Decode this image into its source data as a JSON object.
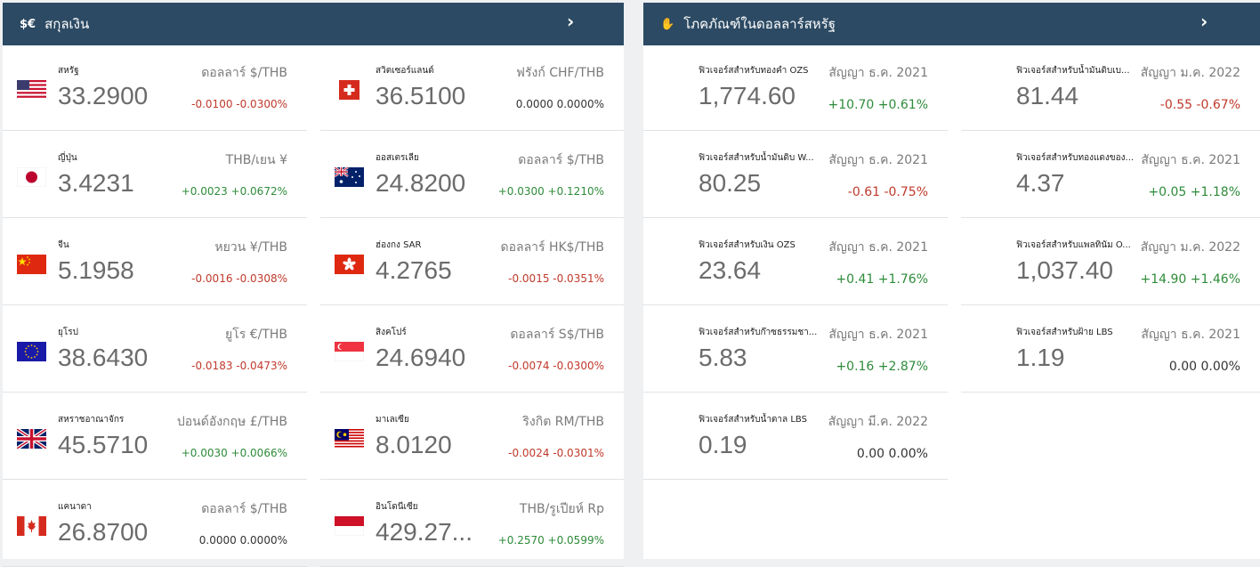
{
  "currency_panel": {
    "icon": "$€",
    "title": "สกุลเงิน",
    "arrow": "›",
    "items": [
      {
        "name": "สหรัฐ",
        "value": "33.2900",
        "unit": "ดอลลาร์ $/THB",
        "change": "-0.0100 -0.0300%",
        "trend": "neg",
        "flag": "us-flag-icon"
      },
      {
        "name": "สวิตเซอร์แลนด์",
        "value": "36.5100",
        "unit": "ฟรังก์ CHF/THB",
        "change": "0.0000 0.0000%",
        "trend": "neu",
        "flag": "ch-flag-icon"
      },
      {
        "name": "ญี่ปุ่น",
        "value": "3.4231",
        "unit": "THB/เยน ¥",
        "change": "+0.0023 +0.0672%",
        "trend": "pos",
        "flag": "jp-flag-icon"
      },
      {
        "name": "ออสเตรเลีย",
        "value": "24.8200",
        "unit": "ดอลลาร์ $/THB",
        "change": "+0.0300 +0.1210%",
        "trend": "pos",
        "flag": "au-flag-icon"
      },
      {
        "name": "จีน",
        "value": "5.1958",
        "unit": "หยวน ¥/THB",
        "change": "-0.0016 -0.0308%",
        "trend": "neg",
        "flag": "cn-flag-icon"
      },
      {
        "name": "ฮ่องกง SAR",
        "value": "4.2765",
        "unit": "ดอลลาร์ HK$/THB",
        "change": "-0.0015 -0.0351%",
        "trend": "neg",
        "flag": "hk-flag-icon"
      },
      {
        "name": "ยุโรป",
        "value": "38.6430",
        "unit": "ยูโร €/THB",
        "change": "-0.0183 -0.0473%",
        "trend": "neg",
        "flag": "eu-flag-icon"
      },
      {
        "name": "สิงคโปร์",
        "value": "24.6940",
        "unit": "ดอลลาร์ S$/THB",
        "change": "-0.0074 -0.0300%",
        "trend": "neg",
        "flag": "sg-flag-icon"
      },
      {
        "name": "สหราชอาณาจักร",
        "value": "45.5710",
        "unit": "ปอนด์อังกฤษ £/THB",
        "change": "+0.0030 +0.0066%",
        "trend": "pos",
        "flag": "gb-flag-icon"
      },
      {
        "name": "มาเลเซีย",
        "value": "8.0120",
        "unit": "ริงกิต RM/THB",
        "change": "-0.0024 -0.0301%",
        "trend": "neg",
        "flag": "my-flag-icon"
      },
      {
        "name": "แคนาดา",
        "value": "26.8700",
        "unit": "ดอลลาร์ $/THB",
        "change": "0.0000 0.0000%",
        "trend": "neu",
        "flag": "ca-flag-icon"
      },
      {
        "name": "อินโดนีเซีย",
        "value": "429.27...",
        "unit": "THB/รูเปียห์ Rp",
        "change": "+0.2570 +0.0599%",
        "trend": "pos",
        "flag": "id-flag-icon"
      }
    ]
  },
  "commodity_panel": {
    "icon": "✋",
    "title": "โภคภัณฑ์ในดอลลาร์สหรัฐ",
    "arrow": "›",
    "items": [
      {
        "name": "ฟิวเจอร์สสำหรับทองคำ OZS",
        "value": "1,774.60",
        "unit": "สัญญา ธ.ค. 2021",
        "change": "+10.70 +0.61%",
        "trend": "pos"
      },
      {
        "name": "ฟิวเจอร์สสำหรับน้ำมันดิบเบ...",
        "value": "81.44",
        "unit": "สัญญา ม.ค. 2022",
        "change": "-0.55 -0.67%",
        "trend": "neg"
      },
      {
        "name": "ฟิวเจอร์สสำหรับน้ำมันดิบ W...",
        "value": "80.25",
        "unit": "สัญญา ธ.ค. 2021",
        "change": "-0.61 -0.75%",
        "trend": "neg"
      },
      {
        "name": "ฟิวเจอร์สสำหรับทองแดงของ...",
        "value": "4.37",
        "unit": "สัญญา ธ.ค. 2021",
        "change": "+0.05 +1.18%",
        "trend": "pos"
      },
      {
        "name": "ฟิวเจอร์สสำหรับเงิน OZS",
        "value": "23.64",
        "unit": "สัญญา ธ.ค. 2021",
        "change": "+0.41 +1.76%",
        "trend": "pos"
      },
      {
        "name": "ฟิวเจอร์สสำหรับแพลทินัม O...",
        "value": "1,037.40",
        "unit": "สัญญา ม.ค. 2022",
        "change": "+14.90 +1.46%",
        "trend": "pos"
      },
      {
        "name": "ฟิวเจอร์สสำหรับก๊าซธรรมชา...",
        "value": "5.83",
        "unit": "สัญญา ธ.ค. 2021",
        "change": "+0.16 +2.87%",
        "trend": "pos"
      },
      {
        "name": "ฟิวเจอร์สสำหรับฝ้าย LBS",
        "value": "1.19",
        "unit": "สัญญา ธ.ค. 2021",
        "change": "0.00 0.00%",
        "trend": "neu"
      },
      {
        "name": "ฟิวเจอร์สสำหรับน้ำตาล LBS",
        "value": "0.19",
        "unit": "สัญญา มี.ค. 2022",
        "change": "0.00 0.00%",
        "trend": "neu"
      }
    ]
  }
}
